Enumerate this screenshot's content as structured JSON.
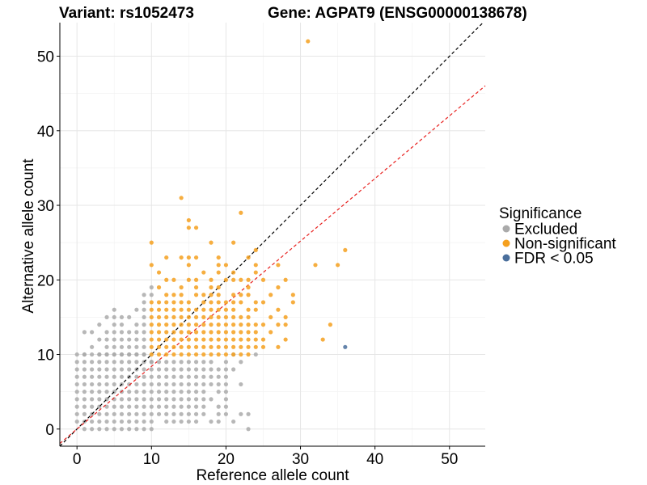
{
  "chart_data": {
    "type": "scatter",
    "titles": [
      "Variant: rs1052473",
      "Gene: AGPAT9 (ENSG00000138678)"
    ],
    "xlabel": "Reference allele count",
    "ylabel": "Alternative allele count",
    "xlim": [
      -2.3,
      54.8
    ],
    "ylim": [
      -2.3,
      54.5
    ],
    "xticks": [
      0,
      10,
      20,
      30,
      40,
      50
    ],
    "yticks": [
      0,
      10,
      20,
      30,
      40,
      50
    ],
    "grid": true,
    "legend": {
      "title": "Significance",
      "placement": "right",
      "entries": [
        {
          "label": "Excluded",
          "color": "#aaaaaa"
        },
        {
          "label": "Non-significant",
          "color": "#f5a01e"
        },
        {
          "label": "FDR < 0.05",
          "color": "#4a6f9c"
        }
      ]
    },
    "reference_lines": [
      {
        "slope": 1,
        "intercept": 0,
        "color": "#000000",
        "style": "dashed"
      },
      {
        "slope": 0.84,
        "intercept": 0,
        "color": "#e8201e",
        "style": "dashed"
      }
    ],
    "excluded_region": {
      "x_max": 10,
      "y_max": 10,
      "color": "#aaaaaa"
    },
    "series": [
      {
        "name": "Excluded",
        "color": "#aaaaaa",
        "points": [
          [
            9,
            18
          ],
          [
            9,
            17
          ],
          [
            9,
            16
          ],
          [
            8,
            16
          ],
          [
            5,
            16
          ],
          [
            9,
            15
          ],
          [
            7,
            15
          ],
          [
            6,
            15
          ],
          [
            5,
            15
          ],
          [
            4,
            15
          ],
          [
            9,
            14
          ],
          [
            8,
            14
          ],
          [
            6,
            14
          ],
          [
            5,
            14
          ],
          [
            3,
            14
          ],
          [
            9,
            13
          ],
          [
            8,
            13
          ],
          [
            7,
            13
          ],
          [
            6,
            13
          ],
          [
            5,
            13
          ],
          [
            4,
            13
          ],
          [
            1,
            13
          ],
          [
            2,
            13
          ],
          [
            9,
            12
          ],
          [
            8,
            12
          ],
          [
            7,
            12
          ],
          [
            6,
            12
          ],
          [
            5,
            12
          ],
          [
            4,
            12
          ],
          [
            3,
            12
          ],
          [
            9,
            11
          ],
          [
            8,
            11
          ],
          [
            7,
            11
          ],
          [
            6,
            11
          ],
          [
            5,
            11
          ],
          [
            4,
            11
          ],
          [
            2,
            11
          ],
          [
            9,
            10
          ],
          [
            8,
            10
          ],
          [
            7,
            10
          ],
          [
            6,
            10
          ],
          [
            5,
            10
          ],
          [
            4,
            10
          ],
          [
            3,
            10
          ],
          [
            1,
            10
          ],
          [
            10,
            9
          ],
          [
            11,
            9
          ],
          [
            12,
            9
          ],
          [
            13,
            9
          ],
          [
            14,
            9
          ],
          [
            15,
            9
          ],
          [
            16,
            9
          ],
          [
            17,
            9
          ],
          [
            18,
            9
          ],
          [
            20,
            9
          ],
          [
            11,
            8
          ],
          [
            12,
            8
          ],
          [
            13,
            8
          ],
          [
            14,
            8
          ],
          [
            15,
            8
          ],
          [
            16,
            8
          ],
          [
            17,
            8
          ],
          [
            18,
            8
          ],
          [
            19,
            8
          ],
          [
            20,
            8
          ],
          [
            21,
            8
          ],
          [
            11,
            7
          ],
          [
            12,
            7
          ],
          [
            13,
            7
          ],
          [
            14,
            7
          ],
          [
            15,
            7
          ],
          [
            16,
            7
          ],
          [
            17,
            7
          ],
          [
            18,
            7
          ],
          [
            19,
            7
          ],
          [
            20,
            7
          ],
          [
            11,
            6
          ],
          [
            12,
            6
          ],
          [
            13,
            6
          ],
          [
            14,
            6
          ],
          [
            15,
            6
          ],
          [
            16,
            6
          ],
          [
            17,
            6
          ],
          [
            18,
            6
          ],
          [
            19,
            6
          ],
          [
            20,
            6
          ],
          [
            22,
            6
          ],
          [
            11,
            5
          ],
          [
            12,
            5
          ],
          [
            13,
            5
          ],
          [
            14,
            5
          ],
          [
            15,
            5
          ],
          [
            16,
            5
          ],
          [
            17,
            5
          ],
          [
            19,
            5
          ],
          [
            20,
            5
          ],
          [
            11,
            4
          ],
          [
            12,
            4
          ],
          [
            13,
            4
          ],
          [
            14,
            4
          ],
          [
            15,
            4
          ],
          [
            16,
            4
          ],
          [
            17,
            4
          ],
          [
            18,
            4
          ],
          [
            20,
            4
          ],
          [
            11,
            3
          ],
          [
            12,
            3
          ],
          [
            13,
            3
          ],
          [
            14,
            3
          ],
          [
            15,
            3
          ],
          [
            16,
            3
          ],
          [
            17,
            3
          ],
          [
            19,
            3
          ],
          [
            20,
            3
          ],
          [
            11,
            2
          ],
          [
            12,
            2
          ],
          [
            13,
            2
          ],
          [
            14,
            2
          ],
          [
            15,
            2
          ],
          [
            16,
            2
          ],
          [
            17,
            2
          ],
          [
            19,
            2
          ],
          [
            20,
            2
          ],
          [
            12,
            1
          ],
          [
            13,
            1
          ],
          [
            14,
            1
          ],
          [
            15,
            1
          ],
          [
            16,
            1
          ],
          [
            18,
            1
          ],
          [
            21,
            1
          ],
          [
            22,
            2
          ],
          [
            23,
            2
          ],
          [
            19,
            1
          ],
          [
            23,
            0
          ],
          [
            21,
            10
          ],
          [
            22,
            9
          ],
          [
            24,
            10
          ],
          [
            10,
            18
          ],
          [
            10,
            19
          ]
        ]
      },
      {
        "name": "Non-significant",
        "color": "#f5a01e",
        "points": [
          [
            31,
            52
          ],
          [
            14,
            31
          ],
          [
            15,
            28
          ],
          [
            16,
            27
          ],
          [
            15,
            27
          ],
          [
            22,
            29
          ],
          [
            10,
            25
          ],
          [
            18,
            25
          ],
          [
            21,
            25
          ],
          [
            24,
            24
          ],
          [
            36,
            24
          ],
          [
            15,
            23
          ],
          [
            14,
            23
          ],
          [
            16,
            23
          ],
          [
            19,
            23
          ],
          [
            23,
            23
          ],
          [
            12,
            23
          ],
          [
            10,
            22
          ],
          [
            15,
            22
          ],
          [
            19,
            22
          ],
          [
            20,
            22
          ],
          [
            24,
            22
          ],
          [
            32,
            22
          ],
          [
            35,
            22
          ],
          [
            27,
            22
          ],
          [
            11,
            21
          ],
          [
            17,
            21
          ],
          [
            19,
            21
          ],
          [
            21,
            21
          ],
          [
            24,
            21
          ],
          [
            12,
            20
          ],
          [
            13,
            20
          ],
          [
            15,
            20
          ],
          [
            16,
            20
          ],
          [
            18,
            20
          ],
          [
            20,
            20
          ],
          [
            21,
            20
          ],
          [
            22,
            20
          ],
          [
            23,
            20
          ],
          [
            25,
            20
          ],
          [
            28,
            20
          ],
          [
            11,
            19
          ],
          [
            14,
            19
          ],
          [
            16,
            19
          ],
          [
            18,
            19
          ],
          [
            19,
            19
          ],
          [
            23,
            19
          ],
          [
            27,
            19
          ],
          [
            12,
            18
          ],
          [
            13,
            18
          ],
          [
            14,
            18
          ],
          [
            16,
            18
          ],
          [
            17,
            18
          ],
          [
            18,
            18
          ],
          [
            19,
            18
          ],
          [
            21,
            18
          ],
          [
            22,
            18
          ],
          [
            23,
            18
          ],
          [
            26,
            18
          ],
          [
            29,
            18
          ],
          [
            10,
            17
          ],
          [
            11,
            17
          ],
          [
            12,
            17
          ],
          [
            13,
            17
          ],
          [
            14,
            17
          ],
          [
            15,
            17
          ],
          [
            17,
            17
          ],
          [
            18,
            17
          ],
          [
            19,
            17
          ],
          [
            20,
            17
          ],
          [
            21,
            17
          ],
          [
            22,
            17
          ],
          [
            24,
            17
          ],
          [
            25,
            17
          ],
          [
            29,
            17
          ],
          [
            10,
            16
          ],
          [
            11,
            16
          ],
          [
            12,
            16
          ],
          [
            13,
            16
          ],
          [
            14,
            16
          ],
          [
            15,
            16
          ],
          [
            16,
            16
          ],
          [
            17,
            16
          ],
          [
            18,
            16
          ],
          [
            19,
            16
          ],
          [
            20,
            16
          ],
          [
            21,
            16
          ],
          [
            23,
            16
          ],
          [
            24,
            16
          ],
          [
            27,
            16
          ],
          [
            10,
            15
          ],
          [
            11,
            15
          ],
          [
            12,
            15
          ],
          [
            13,
            15
          ],
          [
            14,
            15
          ],
          [
            15,
            15
          ],
          [
            16,
            15
          ],
          [
            17,
            15
          ],
          [
            18,
            15
          ],
          [
            19,
            15
          ],
          [
            20,
            15
          ],
          [
            21,
            15
          ],
          [
            22,
            15
          ],
          [
            23,
            15
          ],
          [
            26,
            15
          ],
          [
            28,
            15
          ],
          [
            10,
            14
          ],
          [
            11,
            14
          ],
          [
            12,
            14
          ],
          [
            13,
            14
          ],
          [
            14,
            14
          ],
          [
            15,
            14
          ],
          [
            16,
            14
          ],
          [
            17,
            14
          ],
          [
            18,
            14
          ],
          [
            19,
            14
          ],
          [
            20,
            14
          ],
          [
            21,
            14
          ],
          [
            22,
            14
          ],
          [
            23,
            14
          ],
          [
            24,
            14
          ],
          [
            25,
            14
          ],
          [
            27,
            14
          ],
          [
            28,
            14
          ],
          [
            34,
            14
          ],
          [
            10,
            13
          ],
          [
            11,
            13
          ],
          [
            12,
            13
          ],
          [
            13,
            13
          ],
          [
            14,
            13
          ],
          [
            15,
            13
          ],
          [
            16,
            13
          ],
          [
            17,
            13
          ],
          [
            18,
            13
          ],
          [
            19,
            13
          ],
          [
            20,
            13
          ],
          [
            21,
            13
          ],
          [
            22,
            13
          ],
          [
            23,
            13
          ],
          [
            24,
            13
          ],
          [
            26,
            13
          ],
          [
            10,
            12
          ],
          [
            11,
            12
          ],
          [
            12,
            12
          ],
          [
            13,
            12
          ],
          [
            14,
            12
          ],
          [
            15,
            12
          ],
          [
            16,
            12
          ],
          [
            17,
            12
          ],
          [
            18,
            12
          ],
          [
            19,
            12
          ],
          [
            20,
            12
          ],
          [
            21,
            12
          ],
          [
            22,
            12
          ],
          [
            23,
            12
          ],
          [
            24,
            12
          ],
          [
            25,
            12
          ],
          [
            28,
            12
          ],
          [
            33,
            12
          ],
          [
            10,
            11
          ],
          [
            11,
            11
          ],
          [
            12,
            11
          ],
          [
            13,
            11
          ],
          [
            14,
            11
          ],
          [
            15,
            11
          ],
          [
            16,
            11
          ],
          [
            17,
            11
          ],
          [
            18,
            11
          ],
          [
            19,
            11
          ],
          [
            20,
            11
          ],
          [
            21,
            11
          ],
          [
            22,
            11
          ],
          [
            23,
            11
          ],
          [
            24,
            11
          ],
          [
            25,
            11
          ],
          [
            27,
            11
          ],
          [
            10,
            10
          ],
          [
            11,
            10
          ],
          [
            12,
            10
          ],
          [
            13,
            10
          ],
          [
            14,
            10
          ],
          [
            15,
            10
          ],
          [
            16,
            10
          ],
          [
            17,
            10
          ],
          [
            18,
            10
          ],
          [
            19,
            10
          ],
          [
            20,
            10
          ],
          [
            21,
            10
          ],
          [
            22,
            10
          ],
          [
            23,
            10
          ]
        ]
      },
      {
        "name": "FDR < 0.05",
        "color": "#4a6f9c",
        "points": [
          [
            36,
            11
          ]
        ]
      }
    ]
  }
}
